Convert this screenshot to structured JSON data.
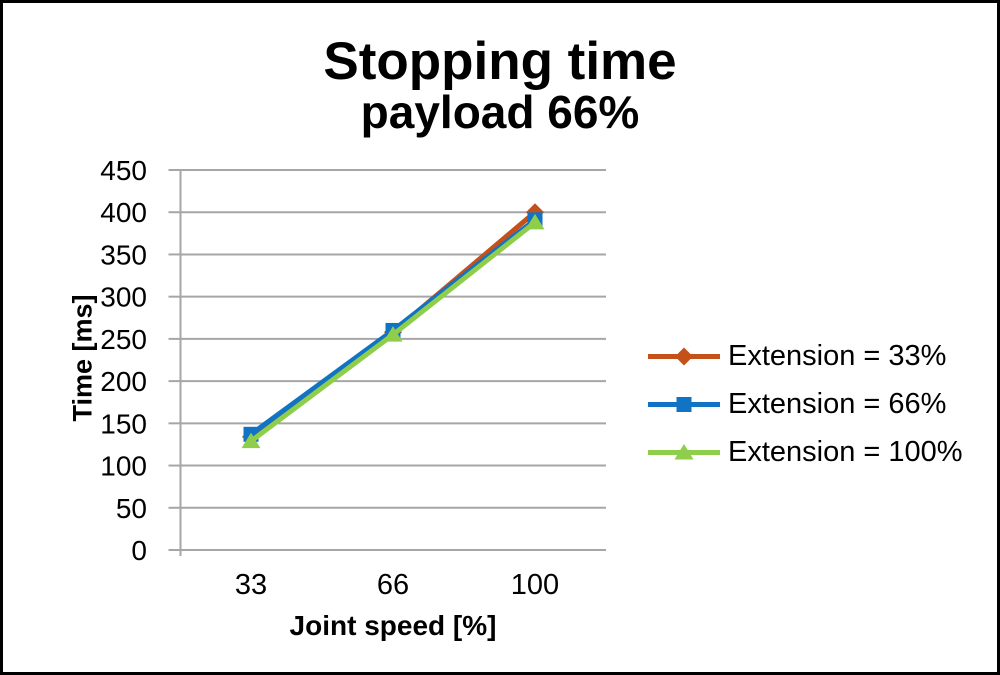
{
  "chart_data": {
    "type": "line",
    "title": "Stopping time",
    "subtitle": "payload 66%",
    "xlabel": "Joint speed [%]",
    "ylabel": "Time [ms]",
    "categories": [
      "33",
      "66",
      "100"
    ],
    "series": [
      {
        "name": "Extension = 33%",
        "marker": "diamond",
        "color": "#C4511A",
        "values": [
          134,
          258,
          400
        ]
      },
      {
        "name": "Extension = 66%",
        "marker": "square",
        "color": "#1173C4",
        "values": [
          137,
          260,
          391
        ]
      },
      {
        "name": "Extension = 100%",
        "marker": "triangle",
        "color": "#8FCE4A",
        "values": [
          129,
          255,
          388
        ]
      }
    ],
    "ylim": [
      0,
      450
    ],
    "ytick_step": 50,
    "grid": true,
    "legend_position": "right",
    "gridline_color": "#A6A6A6",
    "axis_color": "#A6A6A6",
    "text_color": "#000000"
  }
}
